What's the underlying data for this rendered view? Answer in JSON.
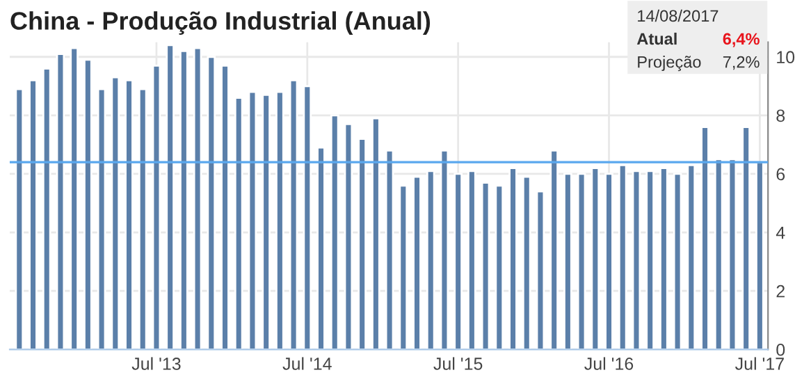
{
  "chart_data": {
    "type": "bar",
    "title": "China - Produção Industrial (Anual)",
    "categories": [
      null,
      null,
      null,
      null,
      null,
      null,
      null,
      null,
      null,
      null,
      "Jul '13",
      null,
      null,
      null,
      null,
      null,
      null,
      null,
      null,
      null,
      null,
      "Jul '14",
      null,
      null,
      null,
      null,
      null,
      null,
      null,
      null,
      null,
      null,
      "Jul '15",
      null,
      null,
      null,
      null,
      null,
      null,
      null,
      null,
      null,
      null,
      "Jul '16",
      null,
      null,
      null,
      null,
      null,
      null,
      null,
      null,
      null,
      null,
      "Jul '17"
    ],
    "series": [
      {
        "color": "#5b7fa9",
        "values": [
          8.9,
          9.2,
          9.6,
          10.1,
          10.3,
          9.9,
          8.9,
          9.3,
          9.2,
          8.9,
          9.7,
          10.4,
          10.2,
          10.3,
          10.0,
          9.7,
          8.6,
          8.8,
          8.7,
          8.8,
          9.2,
          9.0,
          6.9,
          8.0,
          7.7,
          7.2,
          7.9,
          6.8,
          5.6,
          5.9,
          6.1,
          6.8,
          6.0,
          6.1,
          5.7,
          5.6,
          6.2,
          5.9,
          5.4,
          6.8,
          6.0,
          6.0,
          6.2,
          6.0,
          6.3,
          6.1,
          6.1,
          6.2,
          6.0,
          6.3,
          7.6,
          6.5,
          6.5,
          7.6,
          6.4
        ]
      }
    ],
    "ylim": [
      0,
      10.5
    ],
    "yticks": [
      0,
      2,
      4,
      6,
      8,
      10
    ],
    "grid": true,
    "ref_lines": [
      {
        "axis": "y",
        "value": 6.4,
        "color": "#5aa8ee"
      }
    ],
    "annotations": [
      "14/08/2017",
      "Atual",
      "6,4%",
      "Projeção",
      "7,2%"
    ]
  }
}
